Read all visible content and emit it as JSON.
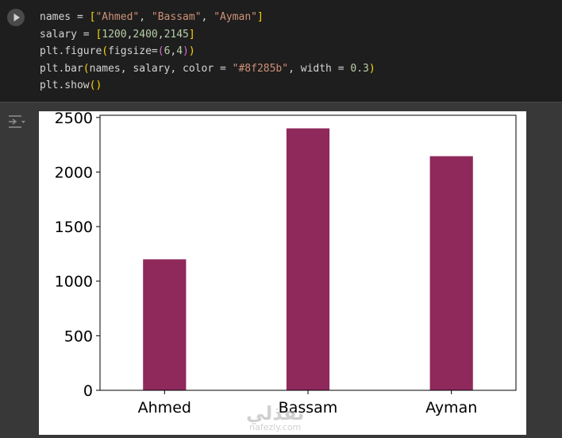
{
  "code_cell": {
    "lines": [
      [
        {
          "t": "names = "
        },
        {
          "t": "[",
          "c": "tok-br1"
        },
        {
          "t": "\"Ahmed\"",
          "c": "tok-str"
        },
        {
          "t": ", "
        },
        {
          "t": "\"Bassam\"",
          "c": "tok-str"
        },
        {
          "t": ", "
        },
        {
          "t": "\"Ayman\"",
          "c": "tok-str"
        },
        {
          "t": "]",
          "c": "tok-br1"
        }
      ],
      [
        {
          "t": "salary = "
        },
        {
          "t": "[",
          "c": "tok-br1"
        },
        {
          "t": "1200",
          "c": "tok-num"
        },
        {
          "t": ","
        },
        {
          "t": "2400",
          "c": "tok-num"
        },
        {
          "t": ","
        },
        {
          "t": "2145",
          "c": "tok-num"
        },
        {
          "t": "]",
          "c": "tok-br1"
        }
      ],
      [
        {
          "t": "plt.figure"
        },
        {
          "t": "(",
          "c": "tok-br1"
        },
        {
          "t": "figsize="
        },
        {
          "t": "(",
          "c": "tok-br2"
        },
        {
          "t": "6",
          "c": "tok-num"
        },
        {
          "t": ","
        },
        {
          "t": "4",
          "c": "tok-num"
        },
        {
          "t": ")",
          "c": "tok-br2"
        },
        {
          "t": ")",
          "c": "tok-br1"
        }
      ],
      [
        {
          "t": "plt.bar"
        },
        {
          "t": "(",
          "c": "tok-br1"
        },
        {
          "t": "names, salary, color = "
        },
        {
          "t": "\"#8f285b\"",
          "c": "tok-str"
        },
        {
          "t": ", width = "
        },
        {
          "t": "0.3",
          "c": "tok-num"
        },
        {
          "t": ")",
          "c": "tok-br1"
        }
      ],
      [
        {
          "t": "plt.show"
        },
        {
          "t": "()",
          "c": "tok-br1"
        }
      ]
    ]
  },
  "icons": {
    "run": "play-icon",
    "output": "output-toggle-icon"
  },
  "colors": {
    "bar": "#8f285b"
  },
  "chart_data": {
    "type": "bar",
    "categories": [
      "Ahmed",
      "Bassam",
      "Ayman"
    ],
    "values": [
      1200,
      2400,
      2145
    ],
    "bar_width": 0.3,
    "title": "",
    "xlabel": "",
    "ylabel": "",
    "ylim": [
      0,
      2520
    ],
    "yticks": [
      0,
      500,
      1000,
      1500,
      2000,
      2500
    ],
    "grid": false
  },
  "watermark": {
    "main": "نفذلي",
    "sub": "nafezly.com"
  }
}
